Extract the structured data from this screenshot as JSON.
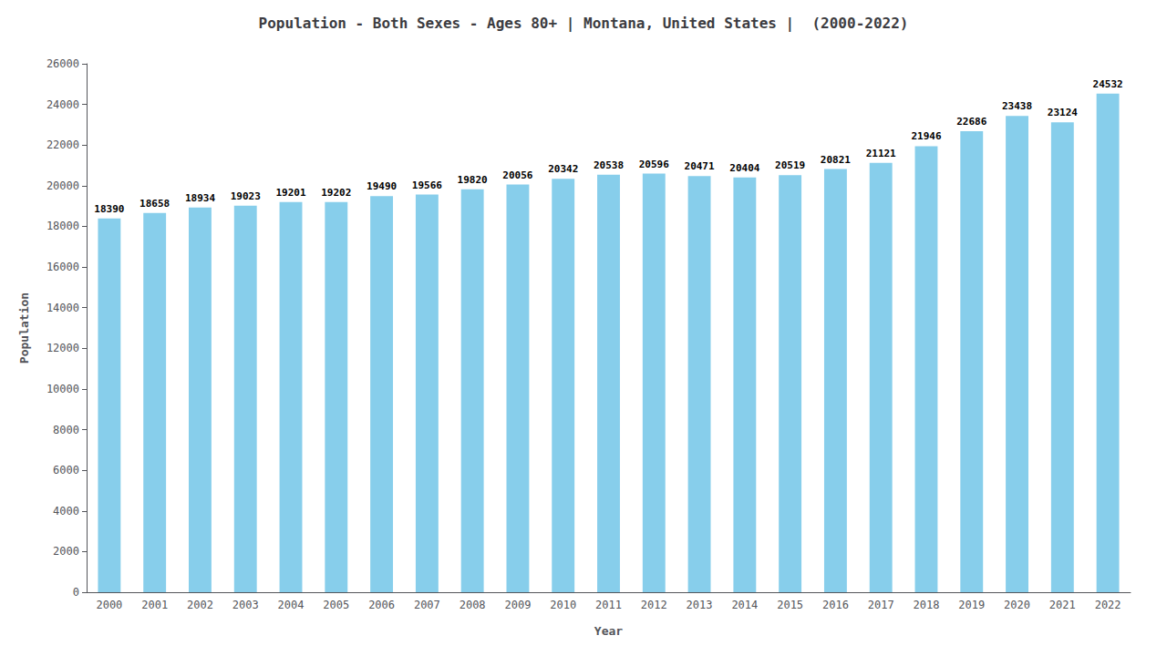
{
  "chart_data": {
    "type": "bar",
    "title": "Population - Both Sexes - Ages 80+ | Montana, United States |  (2000-2022)",
    "xlabel": "Year",
    "ylabel": "Population",
    "categories": [
      "2000",
      "2001",
      "2002",
      "2003",
      "2004",
      "2005",
      "2006",
      "2007",
      "2008",
      "2009",
      "2010",
      "2011",
      "2012",
      "2013",
      "2014",
      "2015",
      "2016",
      "2017",
      "2018",
      "2019",
      "2020",
      "2021",
      "2022"
    ],
    "values": [
      18390,
      18658,
      18934,
      19023,
      19201,
      19202,
      19490,
      19566,
      19820,
      20056,
      20342,
      20538,
      20596,
      20471,
      20404,
      20519,
      20821,
      21121,
      21946,
      22686,
      23438,
      23124,
      24532
    ],
    "color": "#87CEEB",
    "ylim": [
      0,
      26000
    ],
    "yticks": [
      0,
      2000,
      4000,
      6000,
      8000,
      10000,
      12000,
      14000,
      16000,
      18000,
      20000,
      22000,
      24000,
      26000
    ],
    "grid": false,
    "data_labels": true
  }
}
